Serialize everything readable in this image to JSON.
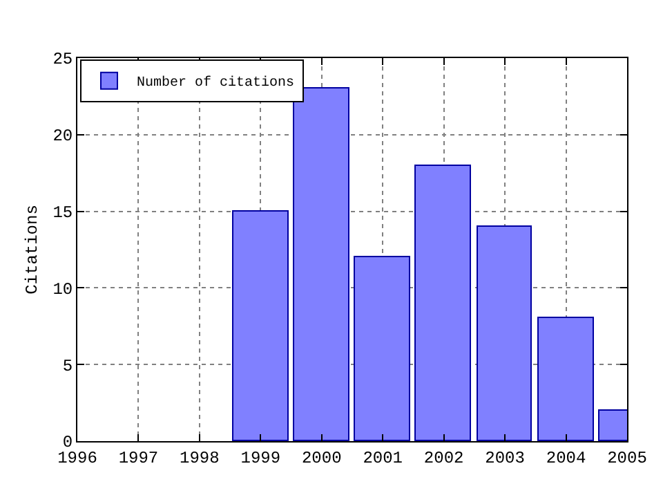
{
  "chart_data": {
    "type": "bar",
    "ylabel": "Citations",
    "x": [
      1999,
      2000,
      2001,
      2002,
      2003,
      2004,
      2005
    ],
    "series": [
      {
        "name": "Number of citations",
        "color": "#8080ff",
        "values": [
          15,
          23,
          12,
          18,
          14,
          8,
          2
        ]
      }
    ],
    "xlim": [
      1996,
      2005
    ],
    "xticks": [
      1996,
      1997,
      1998,
      1999,
      2000,
      2001,
      2002,
      2003,
      2004,
      2005
    ],
    "ylim": [
      0,
      25
    ],
    "yticks": [
      0,
      5,
      10,
      15,
      20,
      25
    ],
    "grid": true,
    "legend": "top left"
  }
}
